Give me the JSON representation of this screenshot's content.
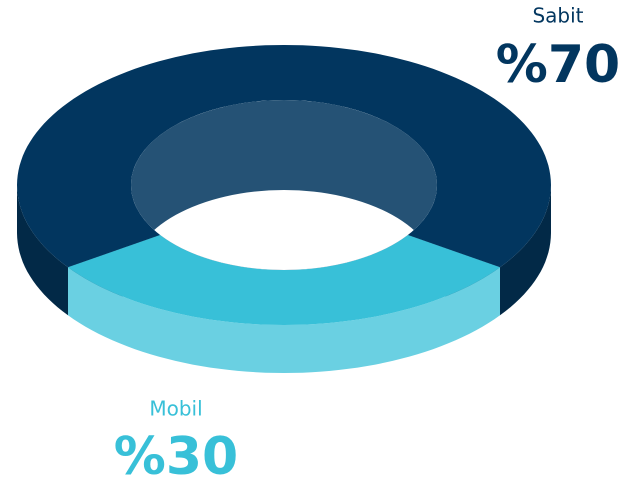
{
  "chart_data": {
    "type": "donut3d",
    "categories": [
      "Sabit",
      "Mobil"
    ],
    "values": [
      70,
      30
    ],
    "value_labels": [
      "%70",
      "%30"
    ],
    "colors": [
      "#02365f",
      "#38c0d8"
    ]
  }
}
